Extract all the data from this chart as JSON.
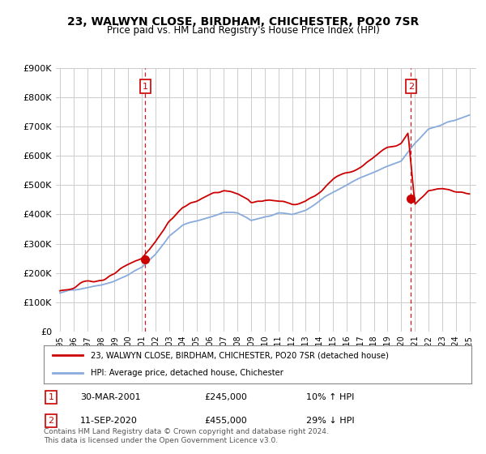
{
  "title": "23, WALWYN CLOSE, BIRDHAM, CHICHESTER, PO20 7SR",
  "subtitle": "Price paid vs. HM Land Registry's House Price Index (HPI)",
  "legend_label_red": "23, WALWYN CLOSE, BIRDHAM, CHICHESTER, PO20 7SR (detached house)",
  "legend_label_blue": "HPI: Average price, detached house, Chichester",
  "annotation1_date": "30-MAR-2001",
  "annotation1_price": "£245,000",
  "annotation1_hpi": "10% ↑ HPI",
  "annotation2_date": "11-SEP-2020",
  "annotation2_price": "£455,000",
  "annotation2_hpi": "29% ↓ HPI",
  "footer": "Contains HM Land Registry data © Crown copyright and database right 2024.\nThis data is licensed under the Open Government Licence v3.0.",
  "color_red": "#cc0000",
  "color_blue": "#88aadd",
  "color_dashed": "#cc0000",
  "ylim_min": 0,
  "ylim_max": 900000,
  "yticks": [
    0,
    100000,
    200000,
    300000,
    400000,
    500000,
    600000,
    700000,
    800000,
    900000
  ],
  "ytick_labels": [
    "£0",
    "£100K",
    "£200K",
    "£300K",
    "£400K",
    "£500K",
    "£600K",
    "£700K",
    "£800K",
    "£900K"
  ],
  "sale1_year": 2001.25,
  "sale1_price": 245000,
  "sale2_year": 2020.72,
  "sale2_price": 455000,
  "background_color": "#ffffff",
  "grid_color": "#cccccc"
}
